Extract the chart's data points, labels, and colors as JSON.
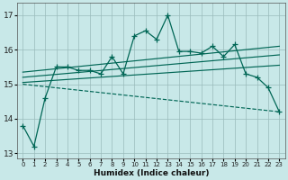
{
  "bg_color": "#c8e8e8",
  "grid_color": "#99bbbb",
  "line_color": "#006655",
  "xlim": [
    -0.5,
    23.5
  ],
  "ylim": [
    12.85,
    17.35
  ],
  "yticks": [
    13,
    14,
    15,
    16,
    17
  ],
  "xlabel": "Humidex (Indice chaleur)",
  "main_y": [
    13.8,
    13.2,
    14.6,
    15.5,
    15.5,
    15.4,
    15.4,
    15.3,
    15.8,
    15.3,
    16.4,
    16.55,
    16.3,
    17.0,
    15.95,
    15.95,
    15.9,
    16.1,
    15.8,
    16.15,
    15.3,
    15.2,
    14.9,
    14.2
  ],
  "trend_lines": [
    {
      "x": [
        0,
        23
      ],
      "y": [
        15.0,
        14.2
      ],
      "dashed": true
    },
    {
      "x": [
        0,
        23
      ],
      "y": [
        15.05,
        15.55
      ],
      "dashed": false
    },
    {
      "x": [
        0,
        23
      ],
      "y": [
        15.2,
        15.85
      ],
      "dashed": false
    },
    {
      "x": [
        0,
        23
      ],
      "y": [
        15.35,
        16.1
      ],
      "dashed": false
    }
  ]
}
